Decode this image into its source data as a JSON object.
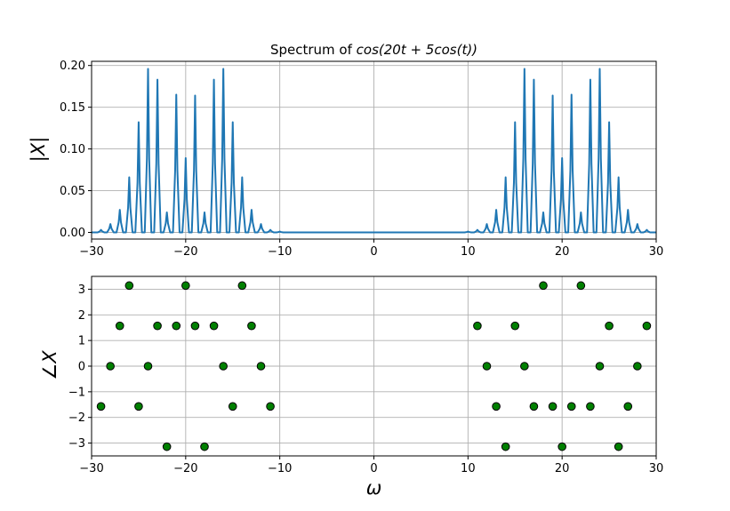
{
  "chart_data": [
    {
      "type": "line",
      "title_prefix": "Spectrum of ",
      "title_math": "cos(20t + 5cos(t))",
      "ylabel": "|X|",
      "xlabel": "",
      "xlim": [
        -30,
        30
      ],
      "ylim": [
        -0.008,
        0.205
      ],
      "xticks": [
        -30,
        -20,
        -10,
        0,
        10,
        20,
        30
      ],
      "yticks": [
        0.0,
        0.05,
        0.1,
        0.15,
        0.2
      ],
      "ytick_labels": [
        "0.00",
        "0.05",
        "0.10",
        "0.15",
        "0.20"
      ],
      "grid": true,
      "color": "#1f77b4",
      "x": [
        -29,
        -28,
        -27,
        -26,
        -25,
        -24,
        -23,
        -22,
        -21,
        -20,
        -19,
        -18,
        -17,
        -16,
        -15,
        -14,
        -13,
        -12,
        -11,
        -10,
        10,
        11,
        12,
        13,
        14,
        15,
        16,
        17,
        18,
        19,
        20,
        21,
        22,
        23,
        24,
        25,
        26,
        27,
        28,
        29
      ],
      "y": [
        0.003,
        0.01,
        0.027,
        0.066,
        0.132,
        0.196,
        0.183,
        0.024,
        0.165,
        0.089,
        0.164,
        0.024,
        0.183,
        0.196,
        0.132,
        0.066,
        0.027,
        0.01,
        0.003,
        0.001,
        0.001,
        0.003,
        0.01,
        0.027,
        0.066,
        0.132,
        0.196,
        0.183,
        0.024,
        0.164,
        0.089,
        0.165,
        0.024,
        0.183,
        0.196,
        0.132,
        0.066,
        0.027,
        0.01,
        0.003
      ]
    },
    {
      "type": "scatter",
      "ylabel": "∠X",
      "xlabel": "ω",
      "xlim": [
        -30,
        30
      ],
      "ylim": [
        -3.5,
        3.5
      ],
      "xticks": [
        -30,
        -20,
        -10,
        0,
        10,
        20,
        30
      ],
      "yticks": [
        3,
        2,
        1,
        0,
        -1,
        -2,
        -3
      ],
      "ytick_labels": [
        "3",
        "2",
        "1",
        "0",
        "−1",
        "−2",
        "−3"
      ],
      "grid": true,
      "marker_color": "#008000",
      "x": [
        -29,
        -28,
        -27,
        -26,
        -25,
        -24,
        -23,
        -22,
        -21,
        -20,
        -19,
        -18,
        -17,
        -16,
        -15,
        -14,
        -13,
        -12,
        -11,
        11,
        12,
        13,
        14,
        15,
        16,
        17,
        18,
        19,
        20,
        21,
        22,
        23,
        24,
        25,
        26,
        27,
        28,
        29
      ],
      "y": [
        -1.5708,
        0,
        1.5708,
        3.1416,
        -1.5708,
        0,
        1.5708,
        -3.1416,
        1.5708,
        3.1416,
        1.5708,
        -3.1416,
        1.5708,
        0,
        -1.5708,
        3.1416,
        1.5708,
        0,
        -1.5708,
        1.5708,
        0,
        -1.5708,
        -3.1416,
        1.5708,
        0,
        -1.5708,
        3.1416,
        -1.5708,
        -3.1416,
        -1.5708,
        3.1416,
        -1.5708,
        0,
        1.5708,
        -3.1416,
        -1.5708,
        0,
        1.5708
      ]
    }
  ]
}
